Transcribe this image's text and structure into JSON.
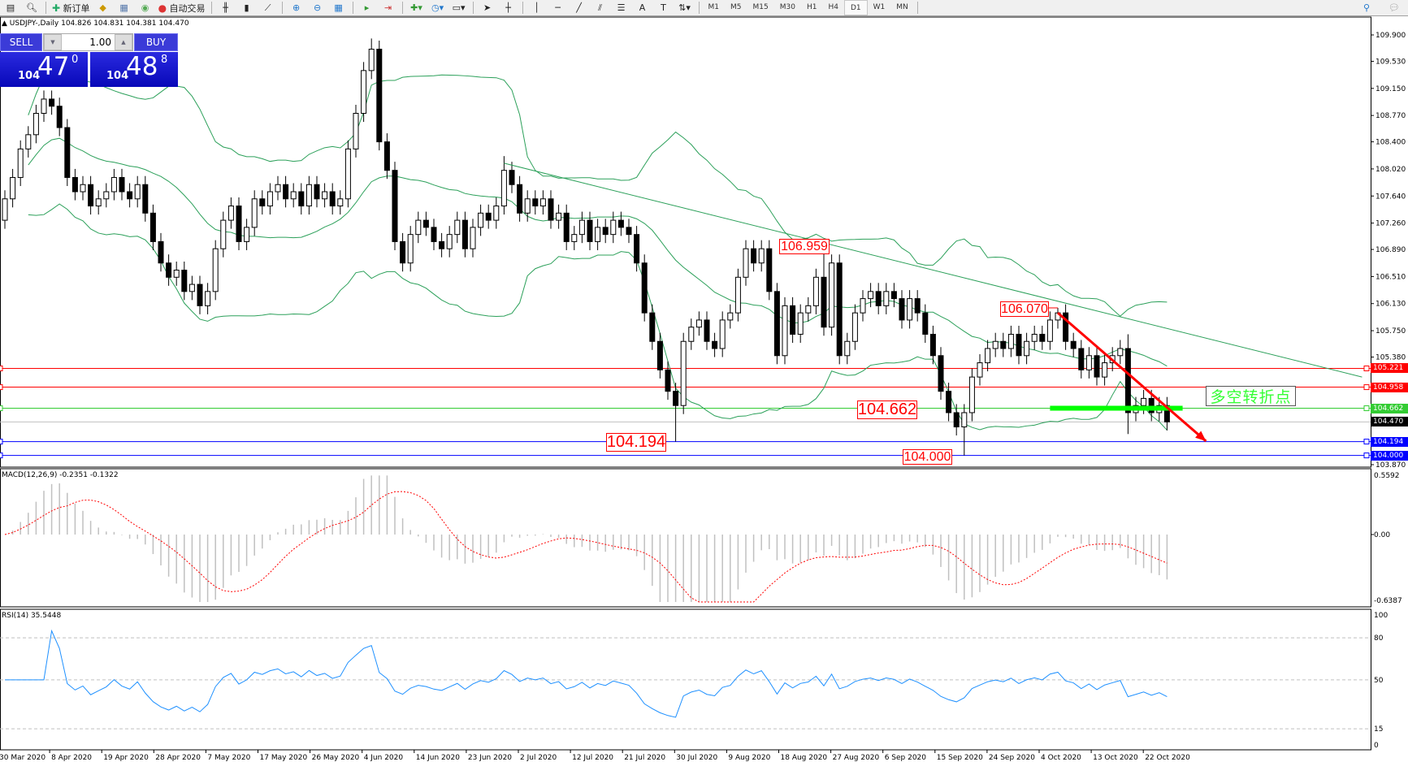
{
  "toolbar": {
    "new_order": "新订单",
    "auto_trading": "自动交易",
    "text_tool": "A",
    "timeframes": [
      "M1",
      "M5",
      "M15",
      "M30",
      "H1",
      "H4",
      "D1",
      "W1",
      "MN"
    ],
    "active_timeframe": "D1"
  },
  "chart": {
    "title": "USDJPY-,Daily",
    "ohlc_readout": "104.826 104.831 104.381 104.470"
  },
  "trade_panel": {
    "sell_label": "SELL",
    "buy_label": "BUY",
    "lot": "1.00",
    "sell_price": {
      "big": "104",
      "main": "47",
      "sup": "0"
    },
    "buy_price": {
      "big": "104",
      "main": "48",
      "sup": "8"
    }
  },
  "annotations": {
    "high_label": "106.959",
    "recent_high_label": "106.070",
    "pivot_label": "104.662",
    "low_label": "104.194",
    "lowest_label": "104.000",
    "pivot_text": "多空转折点"
  },
  "indicators": {
    "macd_label": "MACD(12,26,9) -0.2351 -0.1322",
    "rsi_label": "RSI(14) 35.5448"
  },
  "chart_data": {
    "type": "candlestick",
    "symbol": "USDJPY-",
    "timeframe": "Daily",
    "first_open": 107.3,
    "close": [
      107.6,
      107.9,
      108.3,
      108.5,
      108.8,
      109.0,
      108.9,
      108.6,
      107.9,
      107.7,
      107.8,
      107.5,
      107.6,
      107.7,
      107.9,
      107.7,
      107.6,
      107.8,
      107.4,
      107.0,
      106.7,
      106.5,
      106.6,
      106.3,
      106.4,
      106.1,
      106.3,
      106.9,
      107.3,
      107.5,
      107.0,
      107.2,
      107.6,
      107.5,
      107.7,
      107.8,
      107.6,
      107.7,
      107.5,
      107.8,
      107.6,
      107.7,
      107.5,
      107.6,
      108.3,
      108.8,
      109.4,
      109.7,
      108.4,
      108.0,
      107.0,
      106.7,
      107.1,
      107.3,
      107.2,
      107.0,
      106.9,
      107.1,
      107.3,
      106.9,
      107.2,
      107.4,
      107.3,
      107.5,
      108.0,
      107.8,
      107.4,
      107.6,
      107.5,
      107.6,
      107.3,
      107.4,
      107.0,
      107.1,
      107.3,
      107.0,
      107.2,
      107.1,
      107.3,
      107.2,
      107.1,
      106.7,
      106.0,
      105.6,
      105.2,
      104.9,
      104.7,
      105.6,
      105.8,
      105.9,
      105.6,
      105.5,
      105.9,
      106.0,
      106.5,
      106.9,
      106.7,
      106.9,
      106.3,
      105.4,
      106.1,
      105.7,
      106.0,
      106.1,
      106.5,
      105.8,
      106.7,
      105.4,
      105.6,
      106.0,
      106.2,
      106.3,
      106.1,
      106.3,
      106.2,
      105.9,
      106.2,
      106.0,
      105.7,
      105.4,
      104.9,
      104.6,
      104.4,
      104.6,
      105.1,
      105.3,
      105.5,
      105.6,
      105.5,
      105.7,
      105.4,
      105.6,
      105.7,
      105.6,
      105.9,
      106.0,
      105.6,
      105.5,
      105.2,
      105.4,
      105.1,
      105.3,
      105.4,
      105.5,
      104.6,
      104.7,
      104.8,
      104.6,
      104.7,
      104.47
    ],
    "high_overrides": {
      "47": 109.85,
      "64": 108.2,
      "105": 106.959,
      "135": 106.07,
      "144": 105.7
    },
    "low_overrides": {
      "86": 104.194,
      "123": 104.0,
      "144": 104.3
    },
    "price_axis": {
      "ticks": [
        "109.900",
        "109.530",
        "109.150",
        "108.770",
        "108.400",
        "108.020",
        "107.640",
        "107.260",
        "106.890",
        "106.510",
        "106.130",
        "105.750",
        "105.380",
        "103.870"
      ],
      "range": [
        103.87,
        109.9
      ]
    },
    "date_axis": [
      "30 Mar 2020",
      "8 Apr 2020",
      "19 Apr 2020",
      "28 Apr 2020",
      "7 May 2020",
      "17 May 2020",
      "26 May 2020",
      "4 Jun 2020",
      "14 Jun 2020",
      "23 Jun 2020",
      "2 Jul 2020",
      "12 Jul 2020",
      "21 Jul 2020",
      "30 Jul 2020",
      "9 Aug 2020",
      "18 Aug 2020",
      "27 Aug 2020",
      "6 Sep 2020",
      "15 Sep 2020",
      "24 Sep 2020",
      "4 Oct 2020",
      "13 Oct 2020",
      "22 Oct 2020"
    ],
    "horizontal_lines": [
      {
        "price": 105.221,
        "label": "105.221",
        "color": "#ff0000"
      },
      {
        "price": 104.958,
        "label": "104.958",
        "color": "#ff0000"
      },
      {
        "price": 104.662,
        "label": "104.662",
        "color": "#33cc33"
      },
      {
        "price": 104.47,
        "label": "104.470",
        "color": "#000000",
        "line_color": "#c0c0c0"
      },
      {
        "price": 104.194,
        "label": "104.194",
        "color": "#0000ff"
      },
      {
        "price": 104.0,
        "label": "104.000",
        "color": "#0000ff"
      }
    ],
    "trendline": {
      "from": {
        "bar": 64,
        "price": 108.1
      },
      "to": {
        "bar": 174,
        "price": 105.1
      },
      "color": "#2ca05a"
    },
    "arrow": {
      "from": {
        "bar": 135,
        "price": 106.0
      },
      "to": {
        "bar": 154,
        "price": 104.2
      },
      "color": "#ff0000"
    },
    "pivot_bar": {
      "price": 104.662,
      "from_bar": 134,
      "to_bar": 151,
      "color": "#00ff00"
    },
    "bollinger": {
      "period": 20,
      "deviation": 2,
      "color": "#2ca05a"
    },
    "macd": {
      "fast": 12,
      "slow": 26,
      "signal": 9,
      "main": -0.2351,
      "signal_value": -0.1322,
      "axis": [
        "0.5592",
        "0.00",
        "-0.6387"
      ],
      "range": [
        -0.6387,
        0.5592
      ],
      "hist_color": "#c0c0c0",
      "signal_color": "#ff0000"
    },
    "rsi": {
      "period": 14,
      "value": 35.5448,
      "axis": [
        "100",
        "80",
        "50",
        "15",
        "0"
      ],
      "levels": [
        80,
        50,
        15
      ],
      "color": "#1e90ff"
    }
  }
}
